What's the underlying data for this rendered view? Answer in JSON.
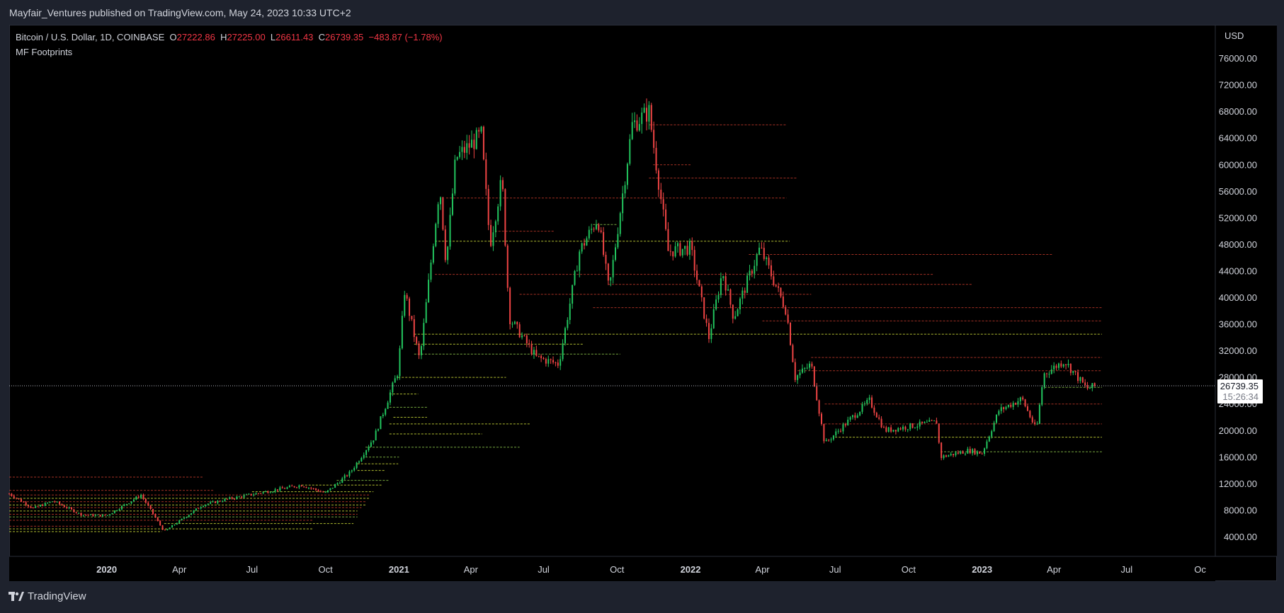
{
  "header": {
    "published": "Mayfair_Ventures published on TradingView.com, May 24, 2023 10:33 UTC+2"
  },
  "legend": {
    "symbol": "Bitcoin / U.S. Dollar, 1D, COINBASE",
    "o_label": "O",
    "o_value": "27222.86",
    "h_label": "H",
    "h_value": "27225.00",
    "l_label": "L",
    "l_value": "26611.43",
    "c_label": "C",
    "c_value": "26739.35",
    "change": "−483.87 (−1.78%)"
  },
  "indicator": {
    "name": "MF Footprints"
  },
  "price_axis": {
    "currency": "USD",
    "current_price": "26739.35",
    "countdown": "15:26:34"
  },
  "footer": {
    "brand": "TradingView"
  },
  "colors": {
    "up": "#26a69a",
    "candle_up": "#22c55e",
    "candle_down": "#ef4444",
    "level_red": "#c0392b",
    "level_green": "#8bc34a",
    "level_yellow": "#cddc39"
  },
  "chart_data": {
    "type": "candlestick",
    "title": "Bitcoin / U.S. Dollar, 1D, COINBASE",
    "y_axis": {
      "ticks": [
        "76000.00",
        "72000.00",
        "68000.00",
        "64000.00",
        "60000.00",
        "56000.00",
        "52000.00",
        "48000.00",
        "44000.00",
        "40000.00",
        "36000.00",
        "32000.00",
        "28000.00",
        "24000.00",
        "20000.00",
        "16000.00",
        "12000.00",
        "8000.00",
        "4000.00"
      ],
      "ylim": [
        0,
        80000
      ],
      "unit": "USD"
    },
    "x_axis": {
      "ticks": [
        {
          "label": "2020",
          "bold": true,
          "date": "2020-01-01"
        },
        {
          "label": "Apr",
          "bold": false,
          "date": "2020-04-01"
        },
        {
          "label": "Jul",
          "bold": false,
          "date": "2020-07-01"
        },
        {
          "label": "Oct",
          "bold": false,
          "date": "2020-10-01"
        },
        {
          "label": "2021",
          "bold": true,
          "date": "2021-01-01"
        },
        {
          "label": "Apr",
          "bold": false,
          "date": "2021-04-01"
        },
        {
          "label": "Jul",
          "bold": false,
          "date": "2021-07-01"
        },
        {
          "label": "Oct",
          "bold": false,
          "date": "2021-10-01"
        },
        {
          "label": "2022",
          "bold": true,
          "date": "2022-01-01"
        },
        {
          "label": "Apr",
          "bold": false,
          "date": "2022-04-01"
        },
        {
          "label": "Jul",
          "bold": false,
          "date": "2022-07-01"
        },
        {
          "label": "Oct",
          "bold": false,
          "date": "2022-10-01"
        },
        {
          "label": "2023",
          "bold": true,
          "date": "2023-01-01"
        },
        {
          "label": "Apr",
          "bold": false,
          "date": "2023-04-01"
        },
        {
          "label": "Jul",
          "bold": false,
          "date": "2023-07-01"
        },
        {
          "label": "Oc",
          "bold": false,
          "date": "2023-10-01"
        }
      ],
      "range": [
        "2019-09-01",
        "2023-10-20"
      ]
    },
    "current_price": 26739.35,
    "price_path": [
      [
        "2019-09-01",
        10500
      ],
      [
        "2019-10-01",
        8300
      ],
      [
        "2019-10-26",
        9400
      ],
      [
        "2019-12-01",
        7300
      ],
      [
        "2020-01-01",
        7200
      ],
      [
        "2020-02-13",
        10300
      ],
      [
        "2020-03-13",
        4800
      ],
      [
        "2020-04-30",
        8800
      ],
      [
        "2020-06-01",
        9700
      ],
      [
        "2020-07-27",
        11000
      ],
      [
        "2020-09-01",
        11800
      ],
      [
        "2020-10-01",
        10600
      ],
      [
        "2020-11-01",
        13700
      ],
      [
        "2020-12-01",
        19000
      ],
      [
        "2020-12-31",
        29000
      ],
      [
        "2021-01-08",
        41000
      ],
      [
        "2021-01-27",
        30500
      ],
      [
        "2021-02-21",
        57000
      ],
      [
        "2021-03-01",
        45000
      ],
      [
        "2021-03-13",
        61000
      ],
      [
        "2021-04-14",
        64500
      ],
      [
        "2021-04-25",
        48000
      ],
      [
        "2021-05-10",
        58000
      ],
      [
        "2021-05-19",
        37000
      ],
      [
        "2021-06-22",
        31000
      ],
      [
        "2021-07-20",
        30000
      ],
      [
        "2021-08-15",
        47000
      ],
      [
        "2021-09-07",
        52000
      ],
      [
        "2021-09-21",
        41000
      ],
      [
        "2021-10-20",
        66000
      ],
      [
        "2021-11-10",
        68000
      ],
      [
        "2021-12-04",
        47000
      ],
      [
        "2022-01-01",
        47500
      ],
      [
        "2022-01-24",
        34000
      ],
      [
        "2022-02-10",
        44000
      ],
      [
        "2022-02-24",
        37000
      ],
      [
        "2022-03-29",
        47500
      ],
      [
        "2022-05-01",
        38000
      ],
      [
        "2022-05-12",
        28000
      ],
      [
        "2022-06-01",
        30000
      ],
      [
        "2022-06-18",
        18000
      ],
      [
        "2022-08-13",
        24500
      ],
      [
        "2022-09-01",
        20000
      ],
      [
        "2022-11-05",
        21300
      ],
      [
        "2022-11-10",
        16000
      ],
      [
        "2022-12-15",
        17000
      ],
      [
        "2023-01-01",
        16600
      ],
      [
        "2023-01-22",
        23000
      ],
      [
        "2023-02-20",
        24800
      ],
      [
        "2023-03-10",
        20000
      ],
      [
        "2023-03-19",
        28500
      ],
      [
        "2023-04-14",
        30500
      ],
      [
        "2023-05-12",
        26300
      ],
      [
        "2023-05-24",
        26739
      ]
    ],
    "levels": [
      {
        "price": 66000,
        "from": "2021-11-10",
        "to": "2022-05-01",
        "color": "red"
      },
      {
        "price": 60000,
        "from": "2021-11-15",
        "to": "2022-01-01",
        "color": "red"
      },
      {
        "price": 58000,
        "from": "2021-11-10",
        "to": "2022-05-15",
        "color": "red"
      },
      {
        "price": 55000,
        "from": "2021-03-01",
        "to": "2022-05-01",
        "color": "red"
      },
      {
        "price": 51000,
        "from": "2021-09-01",
        "to": "2021-10-01",
        "color": "green"
      },
      {
        "price": 50000,
        "from": "2021-05-01",
        "to": "2021-07-15",
        "color": "red"
      },
      {
        "price": 48500,
        "from": "2021-02-15",
        "to": "2022-05-05",
        "color": "yellow"
      },
      {
        "price": 46500,
        "from": "2022-03-15",
        "to": "2023-03-31",
        "color": "red"
      },
      {
        "price": 43500,
        "from": "2021-02-15",
        "to": "2022-11-01",
        "color": "red"
      },
      {
        "price": 42000,
        "from": "2021-09-20",
        "to": "2022-12-20",
        "color": "red"
      },
      {
        "price": 40500,
        "from": "2021-06-01",
        "to": "2022-06-01",
        "color": "red"
      },
      {
        "price": 38500,
        "from": "2021-09-01",
        "to": "2023-05-31",
        "color": "red"
      },
      {
        "price": 36500,
        "from": "2022-04-01",
        "to": "2023-05-31",
        "color": "red"
      },
      {
        "price": 34500,
        "from": "2021-01-20",
        "to": "2023-05-31",
        "color": "yellow"
      },
      {
        "price": 33000,
        "from": "2021-01-20",
        "to": "2021-08-20",
        "color": "yellow"
      },
      {
        "price": 31500,
        "from": "2021-01-20",
        "to": "2021-10-05",
        "color": "green"
      },
      {
        "price": 31000,
        "from": "2022-06-01",
        "to": "2023-05-31",
        "color": "red"
      },
      {
        "price": 29000,
        "from": "2022-05-15",
        "to": "2023-05-31",
        "color": "red"
      },
      {
        "price": 28000,
        "from": "2020-12-31",
        "to": "2021-05-15",
        "color": "yellow"
      },
      {
        "price": 26500,
        "from": "2023-03-20",
        "to": "2023-05-31",
        "color": "green"
      },
      {
        "price": 25500,
        "from": "2020-12-20",
        "to": "2021-01-25",
        "color": "yellow"
      },
      {
        "price": 24000,
        "from": "2022-06-18",
        "to": "2023-05-31",
        "color": "red"
      },
      {
        "price": 23500,
        "from": "2020-12-20",
        "to": "2021-02-05",
        "color": "green"
      },
      {
        "price": 22000,
        "from": "2020-12-25",
        "to": "2021-02-05",
        "color": "yellow"
      },
      {
        "price": 21000,
        "from": "2020-12-20",
        "to": "2021-06-15",
        "color": "yellow"
      },
      {
        "price": 21000,
        "from": "2022-06-18",
        "to": "2023-05-31",
        "color": "red"
      },
      {
        "price": 19500,
        "from": "2020-12-20",
        "to": "2021-04-15",
        "color": "yellow"
      },
      {
        "price": 19000,
        "from": "2022-07-01",
        "to": "2023-05-31",
        "color": "yellow"
      },
      {
        "price": 17500,
        "from": "2020-11-20",
        "to": "2021-06-01",
        "color": "green"
      },
      {
        "price": 16800,
        "from": "2022-11-10",
        "to": "2023-05-31",
        "color": "green"
      },
      {
        "price": 16000,
        "from": "2020-11-20",
        "to": "2021-01-01",
        "color": "green"
      },
      {
        "price": 15000,
        "from": "2020-11-10",
        "to": "2020-12-31",
        "color": "yellow"
      },
      {
        "price": 14000,
        "from": "2020-11-10",
        "to": "2020-12-15",
        "color": "yellow"
      },
      {
        "price": 13000,
        "from": "2019-09-01",
        "to": "2020-04-30",
        "color": "red"
      },
      {
        "price": 12500,
        "from": "2020-10-15",
        "to": "2020-12-20",
        "color": "green"
      },
      {
        "price": 11800,
        "from": "2020-09-01",
        "to": "2020-12-10",
        "color": "yellow"
      },
      {
        "price": 11000,
        "from": "2019-09-01",
        "to": "2020-05-15",
        "color": "red"
      },
      {
        "price": 10800,
        "from": "2020-07-01",
        "to": "2020-11-30",
        "color": "yellow"
      },
      {
        "price": 10300,
        "from": "2019-09-01",
        "to": "2020-11-25",
        "color": "red"
      },
      {
        "price": 9800,
        "from": "2019-09-01",
        "to": "2020-11-25",
        "color": "yellow"
      },
      {
        "price": 9300,
        "from": "2019-09-01",
        "to": "2020-11-20",
        "color": "red"
      },
      {
        "price": 8800,
        "from": "2019-09-01",
        "to": "2020-11-20",
        "color": "yellow"
      },
      {
        "price": 8400,
        "from": "2019-09-01",
        "to": "2020-11-15",
        "color": "red"
      },
      {
        "price": 7900,
        "from": "2019-09-01",
        "to": "2020-11-10",
        "color": "yellow"
      },
      {
        "price": 7400,
        "from": "2019-09-01",
        "to": "2020-11-10",
        "color": "red"
      },
      {
        "price": 7000,
        "from": "2019-09-01",
        "to": "2020-11-10",
        "color": "green"
      },
      {
        "price": 6500,
        "from": "2019-09-01",
        "to": "2020-09-15",
        "color": "red"
      },
      {
        "price": 6000,
        "from": "2020-03-13",
        "to": "2020-11-05",
        "color": "yellow"
      },
      {
        "price": 5600,
        "from": "2019-09-01",
        "to": "2020-03-01",
        "color": "red"
      },
      {
        "price": 5200,
        "from": "2019-09-01",
        "to": "2020-09-15",
        "color": "yellow"
      },
      {
        "price": 4800,
        "from": "2019-09-01",
        "to": "2020-03-10",
        "color": "yellow"
      }
    ]
  }
}
